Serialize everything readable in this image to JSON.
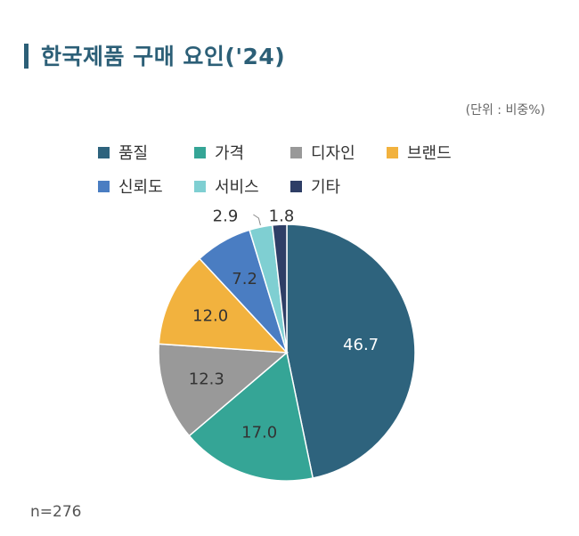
{
  "title": "한국제품 구매 요인('24)",
  "unit_note": "(단위 : 비중%)",
  "sample_note": "n=276",
  "chart_data": {
    "type": "pie",
    "categories": [
      "품질",
      "가격",
      "디자인",
      "브랜드",
      "신뢰도",
      "서비스",
      "기타"
    ],
    "values": [
      46.7,
      17.0,
      12.3,
      12.0,
      7.2,
      2.9,
      1.8
    ],
    "value_labels": [
      "46.7",
      "17.0",
      "12.3",
      "12.0",
      "7.2",
      "2.9",
      "1.8"
    ],
    "colors": [
      "#2e637d",
      "#35a596",
      "#999999",
      "#f2b23e",
      "#4a7dc2",
      "#7fcfd2",
      "#2e3e66"
    ],
    "start": "12 o'clock",
    "direction": "clockwise",
    "legend_position": "top-left"
  }
}
